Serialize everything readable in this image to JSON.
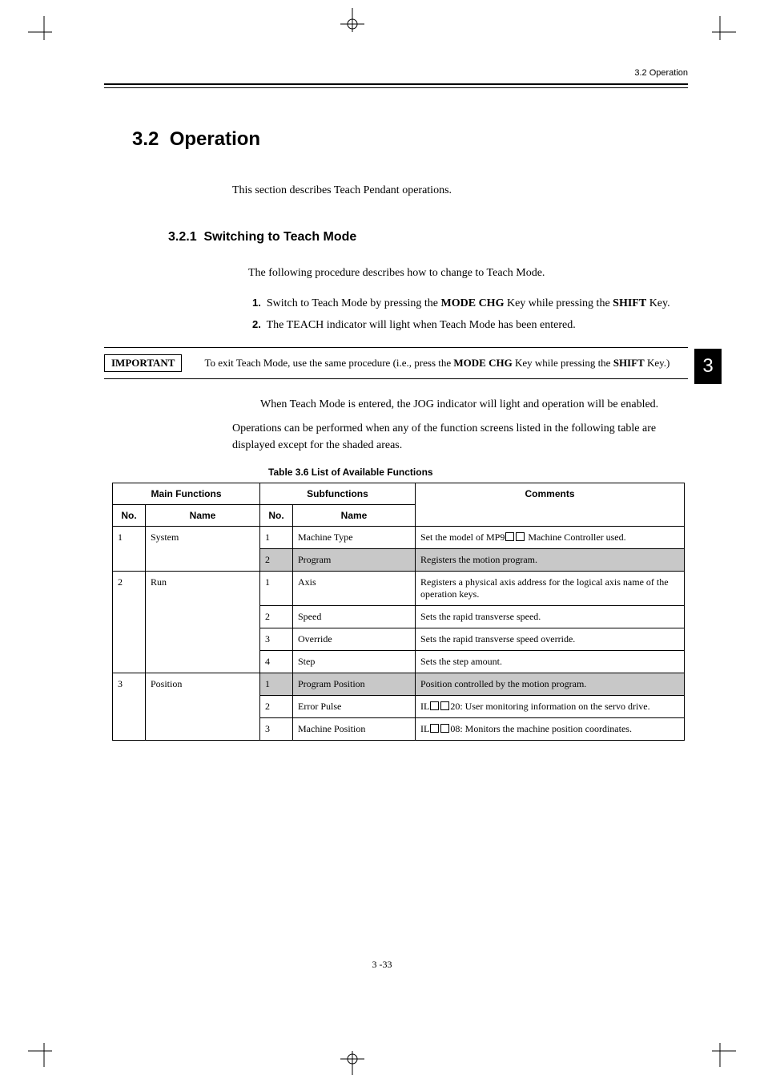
{
  "header": {
    "section_ref": "3.2  Operation"
  },
  "section": {
    "number": "3.2",
    "title": "Operation"
  },
  "intro": "This section describes Teach Pendant operations.",
  "subsection": {
    "number": "3.2.1",
    "title": "Switching to Teach Mode"
  },
  "sub_intro": "The following procedure describes how to change to Teach Mode.",
  "steps": [
    {
      "num": "1.",
      "text_before": "Switch to Teach Mode by pressing the ",
      "bold1": "MODE CHG",
      "mid": " Key while pressing the ",
      "bold2": "SHIFT",
      "after": " Key."
    },
    {
      "num": "2.",
      "text_before": "The TEACH indicator will light when Teach Mode has been entered.",
      "bold1": "",
      "mid": "",
      "bold2": "",
      "after": ""
    }
  ],
  "important": {
    "label": "IMPORTANT",
    "text_before": "To exit Teach Mode, use the same procedure (i.e., press the ",
    "bold1": "MODE CHG",
    "mid": " Key while pressing the ",
    "bold2": "SHIFT",
    "after": " Key.)"
  },
  "sidebar_tab": "3",
  "after_note": "When Teach Mode is entered, the JOG indicator will light and operation will be enabled.",
  "ops_note": "Operations can be performed when any of the function screens listed in the following table are displayed except for the shaded areas.",
  "table": {
    "caption": "Table 3.6    List of Available Functions",
    "head_main": "Main Functions",
    "head_sub": "Subfunctions",
    "head_comments": "Comments",
    "head_no": "No.",
    "head_name": "Name",
    "rows": [
      {
        "m_no": "1",
        "m_name": "System",
        "m_rowspan": 2,
        "s_no": "1",
        "s_name": "Machine Type",
        "c_before": "Set the model of MP9",
        "c_boxes": 2,
        "c_after": " Machine Controller used.",
        "shaded": false
      },
      {
        "s_no": "2",
        "s_name": "Program",
        "c_before": "Registers the motion program.",
        "c_boxes": 0,
        "c_after": "",
        "shaded": true
      },
      {
        "m_no": "2",
        "m_name": "Run",
        "m_rowspan": 4,
        "s_no": "1",
        "s_name": "Axis",
        "c_before": "Registers a physical axis address for the logical axis name of the operation keys.",
        "c_boxes": 0,
        "c_after": "",
        "shaded": false
      },
      {
        "s_no": "2",
        "s_name": "Speed",
        "c_before": "Sets the rapid transverse speed.",
        "c_boxes": 0,
        "c_after": "",
        "shaded": false
      },
      {
        "s_no": "3",
        "s_name": "Override",
        "c_before": "Sets the rapid transverse speed override.",
        "c_boxes": 0,
        "c_after": "",
        "shaded": false
      },
      {
        "s_no": "4",
        "s_name": "Step",
        "c_before": "Sets the step amount.",
        "c_boxes": 0,
        "c_after": "",
        "shaded": false
      },
      {
        "m_no": "3",
        "m_name": "Position",
        "m_rowspan": 3,
        "s_no": "1",
        "s_name": "Program Position",
        "c_before": "Position controlled by the motion program.",
        "c_boxes": 0,
        "c_after": "",
        "shaded": true
      },
      {
        "s_no": "2",
        "s_name": "Error Pulse",
        "c_before": "IL",
        "c_boxes": 2,
        "c_after": "20: User monitoring information on the servo drive.",
        "shaded": false
      },
      {
        "s_no": "3",
        "s_name": "Machine Position",
        "c_before": "IL",
        "c_boxes": 2,
        "c_after": "08: Monitors the machine position coordinates.",
        "shaded": false
      }
    ]
  },
  "page_num": "3 -33",
  "crop": {
    "len": 30,
    "thick": 1
  }
}
